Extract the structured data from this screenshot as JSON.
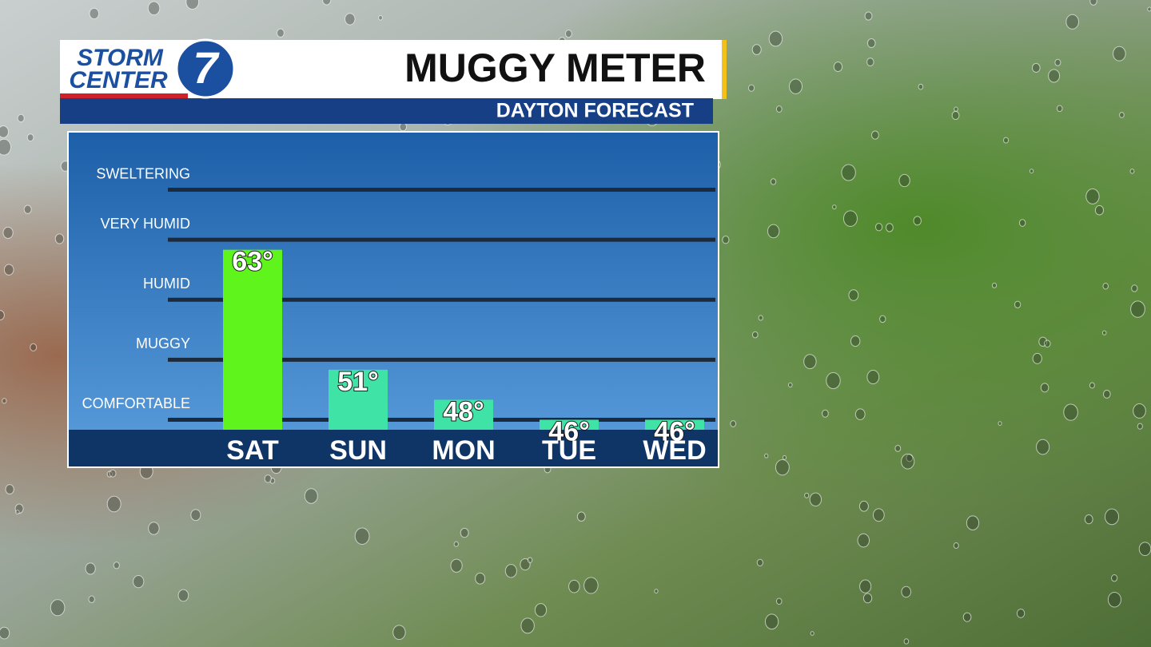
{
  "branding": {
    "line1": "STORM",
    "line2": "CENTER",
    "number": "7"
  },
  "chart_data": {
    "type": "bar",
    "title": "MUGGY METER",
    "subtitle": "DAYTON FORECAST",
    "categories": [
      "SAT",
      "SUN",
      "MON",
      "TUE",
      "WED"
    ],
    "values": [
      63,
      51,
      48,
      46,
      46
    ],
    "value_labels": [
      "63°",
      "51°",
      "48°",
      "46°",
      "46°"
    ],
    "colors": [
      "#5ef41c",
      "#3fe3a6",
      "#3fe3a6",
      "#3fe3a6",
      "#3fe3a6"
    ],
    "ylim": [
      45,
      72
    ],
    "yticks": [
      {
        "value": 46,
        "label": "COMFORTABLE"
      },
      {
        "value": 52,
        "label": "MUGGY"
      },
      {
        "value": 58,
        "label": "HUMID"
      },
      {
        "value": 64,
        "label": "VERY HUMID"
      },
      {
        "value": 69,
        "label": "SWELTERING"
      }
    ],
    "grid": true
  }
}
